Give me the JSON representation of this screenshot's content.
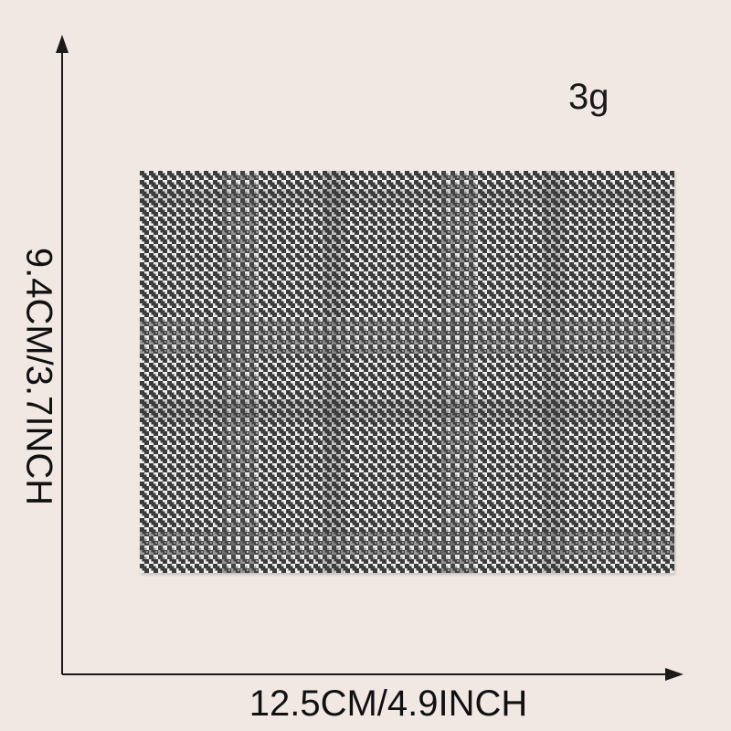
{
  "weight": "3g",
  "width_label": "12.5CM/4.9INCH",
  "height_label": "9.4CM/3.7INCH",
  "fabric": {
    "pattern": "houndstooth-glen-plaid",
    "dark_color": "#3c3c3c",
    "light_color": "#eeeeee"
  },
  "colors": {
    "background": "#f1e8e4",
    "axis": "#1a1a1a"
  }
}
